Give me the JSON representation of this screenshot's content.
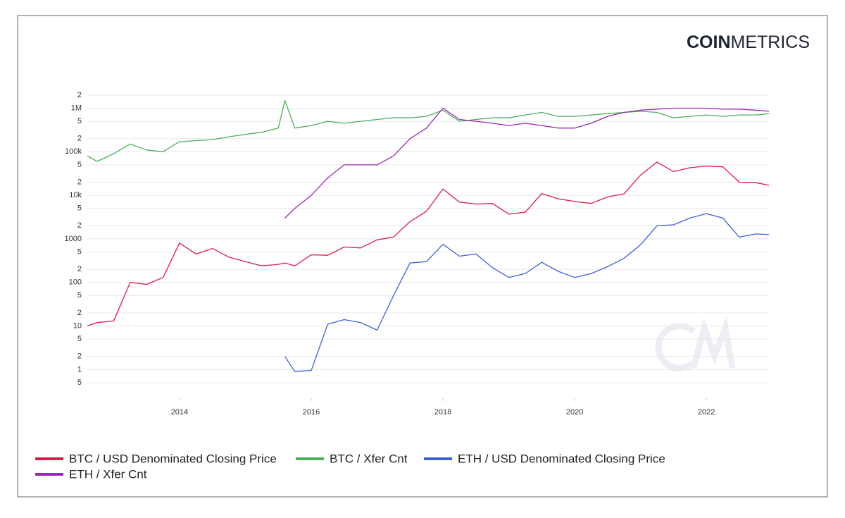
{
  "brand": {
    "bold": "COIN",
    "light": "METRICS"
  },
  "chart_data": {
    "type": "line",
    "yscale": "log",
    "grid": true,
    "legend": "bottom",
    "xlim": [
      2012.6,
      2022.95
    ],
    "xticks": [
      2014,
      2016,
      2018,
      2020,
      2022
    ],
    "ylim": [
      0.22,
      2400000
    ],
    "yticks": [
      {
        "value": 0.5,
        "label": "5"
      },
      1,
      2,
      5,
      10,
      {
        "value": 20,
        "label": "2"
      },
      {
        "value": 50,
        "label": "5"
      },
      100,
      {
        "value": 200,
        "label": "2"
      },
      {
        "value": 500,
        "label": "5"
      },
      1000,
      {
        "value": 2000,
        "label": "2"
      },
      {
        "value": 5000,
        "label": "5"
      },
      {
        "value": 10000,
        "label": "10k"
      },
      {
        "value": 20000,
        "label": "2"
      },
      {
        "value": 50000,
        "label": "5"
      },
      {
        "value": 100000,
        "label": "100k"
      },
      {
        "value": 200000,
        "label": "2"
      },
      {
        "value": 500000,
        "label": "5"
      },
      {
        "value": 1000000,
        "label": "1M"
      },
      {
        "value": 2000000,
        "label": "2"
      }
    ],
    "x": [
      2012.6,
      2012.75,
      2013,
      2013.25,
      2013.5,
      2013.75,
      2014,
      2014.25,
      2014.5,
      2014.75,
      2015,
      2015.25,
      2015.5,
      2015.6,
      2015.75,
      2016,
      2016.25,
      2016.5,
      2016.75,
      2017,
      2017.25,
      2017.5,
      2017.75,
      2018,
      2018.25,
      2018.5,
      2018.75,
      2019,
      2019.25,
      2019.5,
      2019.75,
      2020,
      2020.25,
      2020.5,
      2020.75,
      2021,
      2021.25,
      2021.5,
      2021.75,
      2022,
      2022.25,
      2022.5,
      2022.75,
      2022.95
    ],
    "series": [
      {
        "name": "BTC / USD Denominated Closing Price",
        "color": "#e0194a",
        "values": [
          10,
          12,
          13,
          100,
          90,
          130,
          800,
          450,
          600,
          380,
          300,
          240,
          260,
          280,
          240,
          430,
          420,
          650,
          620,
          950,
          1100,
          2500,
          4300,
          14000,
          7000,
          6300,
          6500,
          3700,
          4100,
          11000,
          8300,
          7200,
          6500,
          9200,
          10800,
          29000,
          58000,
          35000,
          43000,
          47000,
          45000,
          20000,
          19500,
          17000
        ]
      },
      {
        "name": "BTC / Xfer Cnt",
        "color": "#4caf5c",
        "values": [
          80000,
          60000,
          90000,
          150000,
          110000,
          100000,
          170000,
          180000,
          190000,
          220000,
          250000,
          280000,
          350000,
          1500000,
          350000,
          400000,
          500000,
          450000,
          500000,
          550000,
          600000,
          600000,
          650000,
          900000,
          500000,
          550000,
          600000,
          600000,
          700000,
          800000,
          650000,
          650000,
          700000,
          750000,
          800000,
          850000,
          800000,
          600000,
          650000,
          700000,
          650000,
          700000,
          700000,
          750000
        ]
      },
      {
        "name": "ETH / USD Denominated Closing Price",
        "color": "#3f5fd6",
        "values": [
          null,
          null,
          null,
          null,
          null,
          null,
          null,
          null,
          null,
          null,
          null,
          null,
          null,
          2,
          0.9,
          0.95,
          11,
          14,
          12,
          8,
          50,
          280,
          300,
          750,
          400,
          450,
          220,
          130,
          160,
          290,
          180,
          130,
          160,
          230,
          360,
          730,
          2000,
          2100,
          3000,
          3800,
          3000,
          1100,
          1300,
          1250
        ]
      },
      {
        "name": "ETH / Xfer Cnt",
        "color": "#9b27b0",
        "values": [
          null,
          null,
          null,
          null,
          null,
          null,
          null,
          null,
          null,
          null,
          null,
          null,
          null,
          3000,
          5000,
          10000,
          25000,
          50000,
          50000,
          50000,
          80000,
          200000,
          350000,
          1000000,
          550000,
          500000,
          450000,
          400000,
          450000,
          400000,
          350000,
          350000,
          450000,
          650000,
          800000,
          900000,
          950000,
          1000000,
          1000000,
          1000000,
          950000,
          950000,
          900000,
          850000
        ]
      }
    ]
  }
}
